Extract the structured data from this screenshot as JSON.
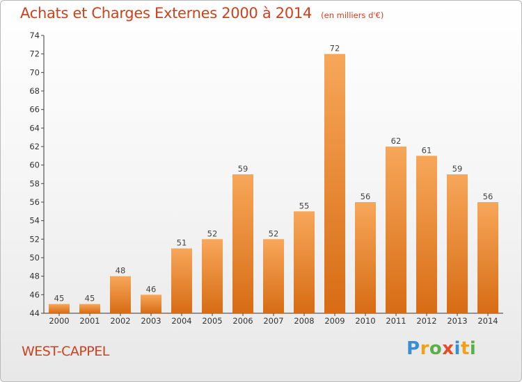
{
  "header": {
    "title": "Achats et Charges Externes 2000 à 2014",
    "subtitle": "(en milliers d'€)"
  },
  "footer": {
    "city": "WEST-CAPPEL",
    "logo_text": "Proxiti"
  },
  "colors": {
    "title": "#d0401c",
    "bar_top": "#f7a75a",
    "bar_bottom": "#d76c14",
    "axis": "#333333",
    "grid_tick": "#444444"
  },
  "chart_data": {
    "type": "bar",
    "title": "Achats et Charges Externes 2000 à 2014",
    "subtitle": "(en milliers d'€)",
    "categories": [
      "2000",
      "2001",
      "2002",
      "2003",
      "2004",
      "2005",
      "2006",
      "2007",
      "2008",
      "2009",
      "2010",
      "2011",
      "2012",
      "2013",
      "2014"
    ],
    "values": [
      45,
      45,
      48,
      46,
      51,
      52,
      59,
      52,
      55,
      72,
      56,
      62,
      61,
      59,
      56
    ],
    "data_labels": [
      "45",
      "45",
      "48",
      "46",
      "51",
      "52",
      "59",
      "52",
      "55",
      "72",
      "56",
      "62",
      "61",
      "59",
      "56"
    ],
    "ylim": [
      44,
      74
    ],
    "yticks": [
      44,
      46,
      48,
      50,
      52,
      54,
      56,
      58,
      60,
      62,
      64,
      66,
      68,
      70,
      72,
      74
    ],
    "xlabel": "",
    "ylabel": "",
    "grid": false,
    "legend": "none"
  }
}
